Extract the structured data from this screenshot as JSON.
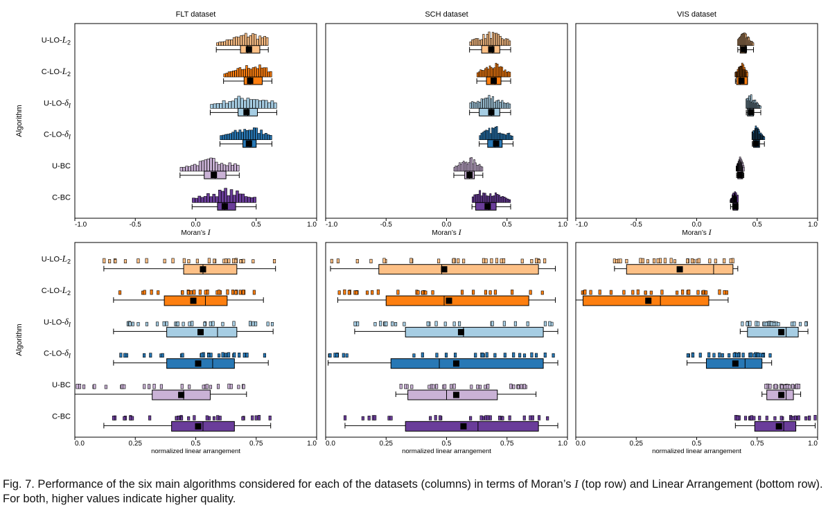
{
  "figure": {
    "caption_prefix": "Fig. 7. Performance of the six main algorithms considered for each of the datasets (columns) in terms of Moran’s ",
    "caption_var": "I",
    "caption_suffix": " (top row) and Linear Arrangement (bottom row). For both, higher values indicate higher quality.",
    "y_axis_label": "Algorithm",
    "datasets": [
      "FLT dataset",
      "SCH dataset",
      "VIS dataset"
    ],
    "algorithms": [
      {
        "base": "U-LO-",
        "sym": "L",
        "sub": "2"
      },
      {
        "base": "C-LO-",
        "sym": "L",
        "sub": "2"
      },
      {
        "base": "U-LO-",
        "sym": "δ",
        "sub": "I"
      },
      {
        "base": "C-LO-",
        "sym": "δ",
        "sub": "I"
      },
      {
        "base": "U-BC",
        "sym": "",
        "sub": ""
      },
      {
        "base": "C-BC",
        "sym": "",
        "sub": ""
      }
    ],
    "colors": {
      "U-LO-L2": "#fdc086",
      "C-LO-L2": "#fd7f10",
      "U-LO-dI": "#a6cde3",
      "C-LO-dI": "#2878b5",
      "U-BC": "#cab2d6",
      "C-BC": "#6a3d9a",
      "mean_marker": "#000000"
    },
    "xlabel_top": "Moran’s ",
    "xlabel_top_var": "I",
    "xlabel_bottom": "normalized linear arrangement",
    "xticks_top": [
      "-1.0",
      "-0.5",
      "0.0",
      "0.5",
      "1.0"
    ],
    "xticks_bottom": [
      "0.0",
      "0.25",
      "0.5",
      "0.75",
      "1.0"
    ]
  },
  "chart_data": [
    {
      "type": "box",
      "row": "moran",
      "dataset": "FLT dataset",
      "xlim": [
        -1.0,
        1.0
      ],
      "series": [
        {
          "name": "U-LO-L2",
          "min": 0.17,
          "q1": 0.37,
          "median": 0.43,
          "q3": 0.53,
          "max": 0.6,
          "mean": 0.44
        },
        {
          "name": "C-LO-L2",
          "min": 0.23,
          "q1": 0.4,
          "median": 0.45,
          "q3": 0.55,
          "max": 0.63,
          "mean": 0.45
        },
        {
          "name": "U-LO-dI",
          "min": 0.12,
          "q1": 0.35,
          "median": 0.43,
          "q3": 0.51,
          "max": 0.67,
          "mean": 0.42
        },
        {
          "name": "C-LO-dI",
          "min": 0.2,
          "q1": 0.39,
          "median": 0.45,
          "q3": 0.5,
          "max": 0.63,
          "mean": 0.44
        },
        {
          "name": "U-BC",
          "min": -0.13,
          "q1": 0.07,
          "median": 0.16,
          "q3": 0.25,
          "max": 0.36,
          "mean": 0.15
        },
        {
          "name": "C-BC",
          "min": -0.03,
          "q1": 0.18,
          "median": 0.24,
          "q3": 0.33,
          "max": 0.5,
          "mean": 0.24
        }
      ]
    },
    {
      "type": "box",
      "row": "moran",
      "dataset": "SCH dataset",
      "xlim": [
        -1.0,
        1.0
      ],
      "series": [
        {
          "name": "U-LO-L2",
          "min": 0.19,
          "q1": 0.29,
          "median": 0.38,
          "q3": 0.44,
          "max": 0.53,
          "mean": 0.37
        },
        {
          "name": "C-LO-L2",
          "min": 0.25,
          "q1": 0.33,
          "median": 0.4,
          "q3": 0.45,
          "max": 0.53,
          "mean": 0.39
        },
        {
          "name": "U-LO-dI",
          "min": 0.19,
          "q1": 0.27,
          "median": 0.37,
          "q3": 0.44,
          "max": 0.53,
          "mean": 0.37
        },
        {
          "name": "C-LO-dI",
          "min": 0.27,
          "q1": 0.34,
          "median": 0.4,
          "q3": 0.46,
          "max": 0.55,
          "mean": 0.41
        },
        {
          "name": "U-BC",
          "min": 0.06,
          "q1": 0.15,
          "median": 0.19,
          "q3": 0.23,
          "max": 0.3,
          "mean": 0.19
        },
        {
          "name": "C-BC",
          "min": 0.21,
          "q1": 0.24,
          "median": 0.35,
          "q3": 0.41,
          "max": 0.53,
          "mean": 0.34
        }
      ]
    },
    {
      "type": "box",
      "row": "moran",
      "dataset": "VIS dataset",
      "xlim": [
        -1.0,
        1.0
      ],
      "series": [
        {
          "name": "U-LO-L2",
          "min": 0.34,
          "q1": 0.36,
          "median": 0.4,
          "q3": 0.41,
          "max": 0.47,
          "mean": 0.39
        },
        {
          "name": "C-LO-L2",
          "min": 0.32,
          "q1": 0.33,
          "median": 0.36,
          "q3": 0.42,
          "max": 0.42,
          "mean": 0.37
        },
        {
          "name": "U-LO-dI",
          "min": 0.41,
          "q1": 0.42,
          "median": 0.44,
          "q3": 0.47,
          "max": 0.53,
          "mean": 0.45
        },
        {
          "name": "C-LO-dI",
          "min": 0.46,
          "q1": 0.47,
          "median": 0.49,
          "q3": 0.52,
          "max": 0.56,
          "mean": 0.49
        },
        {
          "name": "U-BC",
          "min": 0.33,
          "q1": 0.34,
          "median": 0.37,
          "q3": 0.38,
          "max": 0.39,
          "mean": 0.36
        },
        {
          "name": "C-BC",
          "min": 0.28,
          "q1": 0.3,
          "median": 0.33,
          "q3": 0.34,
          "max": 0.34,
          "mean": 0.32
        }
      ]
    },
    {
      "type": "box",
      "row": "linear_arrangement",
      "dataset": "FLT dataset",
      "xlim": [
        0.0,
        1.0
      ],
      "series": [
        {
          "name": "U-LO-L2",
          "min": 0.12,
          "q1": 0.45,
          "median": 0.53,
          "q3": 0.67,
          "max": 0.83,
          "mean": 0.53
        },
        {
          "name": "C-LO-L2",
          "min": 0.16,
          "q1": 0.37,
          "median": 0.54,
          "q3": 0.63,
          "max": 0.78,
          "mean": 0.49
        },
        {
          "name": "U-LO-dI",
          "min": 0.16,
          "q1": 0.38,
          "median": 0.59,
          "q3": 0.67,
          "max": 0.82,
          "mean": 0.52
        },
        {
          "name": "C-LO-dI",
          "min": 0.16,
          "q1": 0.38,
          "median": 0.57,
          "q3": 0.66,
          "max": 0.8,
          "mean": 0.51
        },
        {
          "name": "U-BC",
          "min": 0.0,
          "q1": 0.32,
          "median": 0.45,
          "q3": 0.56,
          "max": 0.71,
          "mean": 0.44
        },
        {
          "name": "C-BC",
          "min": 0.12,
          "q1": 0.4,
          "median": 0.53,
          "q3": 0.66,
          "max": 0.81,
          "mean": 0.51
        }
      ]
    },
    {
      "type": "box",
      "row": "linear_arrangement",
      "dataset": "SCH dataset",
      "xlim": [
        0.0,
        1.0
      ],
      "series": [
        {
          "name": "U-LO-L2",
          "min": 0.02,
          "q1": 0.22,
          "median": 0.48,
          "q3": 0.88,
          "max": 0.95,
          "mean": 0.49
        },
        {
          "name": "C-LO-L2",
          "min": 0.05,
          "q1": 0.25,
          "median": 0.49,
          "q3": 0.84,
          "max": 0.95,
          "mean": 0.51
        },
        {
          "name": "U-LO-dI",
          "min": 0.12,
          "q1": 0.33,
          "median": 0.57,
          "q3": 0.9,
          "max": 0.96,
          "mean": 0.56
        },
        {
          "name": "C-LO-dI",
          "min": 0.01,
          "q1": 0.27,
          "median": 0.47,
          "q3": 0.9,
          "max": 0.96,
          "mean": 0.54
        },
        {
          "name": "U-BC",
          "min": 0.29,
          "q1": 0.34,
          "median": 0.5,
          "q3": 0.71,
          "max": 0.87,
          "mean": 0.54
        },
        {
          "name": "C-BC",
          "min": 0.08,
          "q1": 0.33,
          "median": 0.63,
          "q3": 0.88,
          "max": 0.96,
          "mean": 0.57
        }
      ]
    },
    {
      "type": "box",
      "row": "linear_arrangement",
      "dataset": "VIS dataset",
      "xlim": [
        0.0,
        1.0
      ],
      "series": [
        {
          "name": "U-LO-L2",
          "min": 0.16,
          "q1": 0.21,
          "median": 0.57,
          "q3": 0.65,
          "max": 0.67,
          "mean": 0.43
        },
        {
          "name": "C-LO-L2",
          "min": 0.0,
          "q1": 0.03,
          "median": 0.35,
          "q3": 0.55,
          "max": 0.63,
          "mean": 0.3
        },
        {
          "name": "U-LO-dI",
          "min": 0.68,
          "q1": 0.71,
          "median": 0.87,
          "q3": 0.92,
          "max": 0.96,
          "mean": 0.85
        },
        {
          "name": "C-LO-dI",
          "min": 0.46,
          "q1": 0.54,
          "median": 0.7,
          "q3": 0.77,
          "max": 0.81,
          "mean": 0.66
        },
        {
          "name": "U-BC",
          "min": 0.77,
          "q1": 0.79,
          "median": 0.87,
          "q3": 0.9,
          "max": 0.93,
          "mean": 0.85
        },
        {
          "name": "C-BC",
          "min": 0.66,
          "q1": 0.74,
          "median": 0.86,
          "q3": 0.91,
          "max": 0.99,
          "mean": 0.84
        }
      ]
    }
  ]
}
